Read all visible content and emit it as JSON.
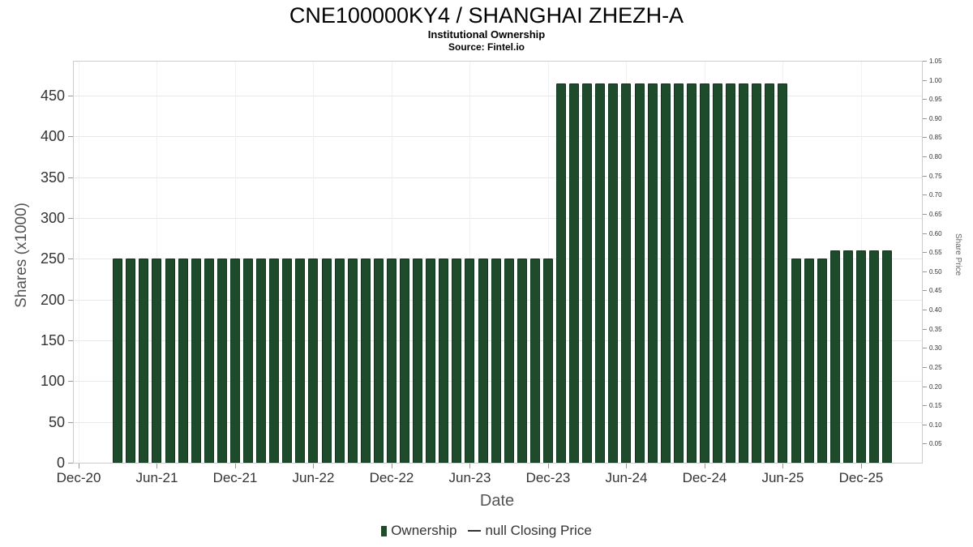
{
  "header": {
    "title": "CNE100000KY4 / SHANGHAI ZHEZH-A",
    "subtitle": "Institutional Ownership",
    "source": "Source: Fintel.io"
  },
  "chart_data": {
    "type": "bar",
    "title": "CNE100000KY4 / SHANGHAI ZHEZH-A",
    "subtitle": "Institutional Ownership",
    "source": "Source: Fintel.io",
    "xlabel": "Date",
    "ylabel_left": "Shares (x1000)",
    "ylabel_right": "Share Price",
    "bar_color": "#1d4b2b",
    "x_start": "Mar-21",
    "frequency": "monthly",
    "values": [
      250,
      250,
      250,
      250,
      250,
      250,
      250,
      250,
      250,
      250,
      250,
      250,
      250,
      250,
      250,
      250,
      250,
      250,
      250,
      250,
      250,
      250,
      250,
      250,
      250,
      250,
      250,
      250,
      250,
      250,
      250,
      250,
      250,
      250,
      465,
      465,
      465,
      465,
      465,
      465,
      465,
      465,
      465,
      465,
      465,
      465,
      465,
      465,
      465,
      465,
      465,
      465,
      250,
      250,
      250,
      260,
      260,
      260,
      260,
      260
    ],
    "left_axis": {
      "ticks": [
        0,
        50,
        100,
        150,
        200,
        250,
        300,
        350,
        400,
        450
      ],
      "range": [
        0,
        491
      ],
      "grid": true
    },
    "right_axis": {
      "ticks": [
        1.05,
        1.0,
        0.95,
        0.9,
        0.85,
        0.8,
        0.75,
        0.7,
        0.65,
        0.6,
        0.55,
        0.5,
        0.45,
        0.4,
        0.35,
        0.3,
        0.25,
        0.2,
        0.15,
        0.1,
        0.05
      ],
      "range": [
        0,
        1.055
      ]
    },
    "x_axis": {
      "tick_labels": [
        "Dec-20",
        "Jun-21",
        "Dec-21",
        "Jun-22",
        "Dec-22",
        "Jun-23",
        "Dec-23",
        "Jun-24",
        "Dec-24",
        "Jun-25",
        "Dec-25"
      ],
      "tick_month_index": [
        0,
        6,
        12,
        18,
        24,
        30,
        36,
        42,
        48,
        54,
        60
      ]
    },
    "legend": [
      {
        "label": "Ownership",
        "marker": "bar",
        "color": "#1d4b2b"
      },
      {
        "label": "null Closing Price",
        "marker": "line",
        "color": "#333333"
      }
    ]
  }
}
